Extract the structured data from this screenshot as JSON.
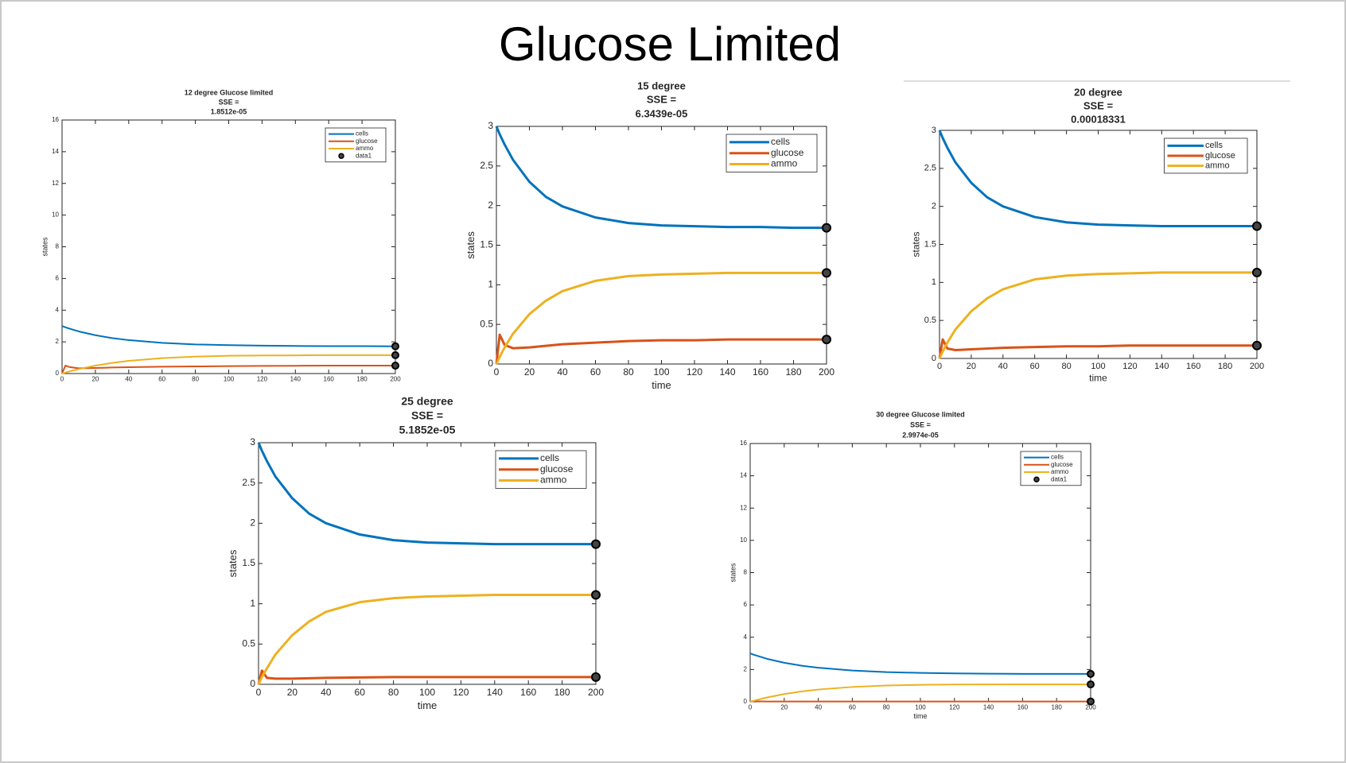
{
  "title": "Glucose Limited",
  "chart_data": [
    {
      "type": "line",
      "title": [
        "12 degree Glucose limited",
        "SSE =",
        "1.8512e-05"
      ],
      "ylabel": "states",
      "x": [
        0,
        2,
        5,
        10,
        20,
        30,
        40,
        60,
        80,
        100,
        120,
        140,
        160,
        180,
        200
      ],
      "xlim": [
        0,
        200
      ],
      "xticks": [
        0,
        20,
        40,
        60,
        80,
        100,
        120,
        140,
        160,
        180,
        200
      ],
      "ylim": [
        0,
        16
      ],
      "yticks": [
        0,
        2,
        4,
        6,
        8,
        10,
        12,
        14,
        16
      ],
      "legend": "northeast",
      "series": [
        {
          "name": "cells",
          "color": "#0072BD",
          "values": [
            3,
            2.92,
            2.82,
            2.66,
            2.42,
            2.24,
            2.11,
            1.94,
            1.84,
            1.79,
            1.76,
            1.74,
            1.73,
            1.73,
            1.72
          ]
        },
        {
          "name": "glucose",
          "color": "#D95319",
          "values": [
            0,
            0.5,
            0.4,
            0.33,
            0.35,
            0.38,
            0.4,
            0.43,
            0.45,
            0.47,
            0.48,
            0.49,
            0.5,
            0.5,
            0.5
          ]
        },
        {
          "name": "ammo",
          "color": "#EDB120",
          "values": [
            0,
            0.06,
            0.15,
            0.28,
            0.5,
            0.67,
            0.8,
            0.97,
            1.07,
            1.12,
            1.14,
            1.15,
            1.16,
            1.16,
            1.16
          ]
        },
        {
          "name": "data1",
          "color": "#000000",
          "style": "marker",
          "x": [
            200,
            200,
            200
          ],
          "values": [
            1.72,
            1.16,
            0.5
          ]
        }
      ]
    },
    {
      "type": "line",
      "title": [
        "15 degree",
        "SSE =",
        "6.3439e-05"
      ],
      "ylabel": "states",
      "xlabel": "time",
      "x": [
        0,
        2,
        5,
        10,
        20,
        30,
        40,
        60,
        80,
        100,
        120,
        140,
        160,
        180,
        200
      ],
      "xlim": [
        0,
        200
      ],
      "xticks": [
        0,
        20,
        40,
        60,
        80,
        100,
        120,
        140,
        160,
        180,
        200
      ],
      "ylim": [
        0,
        3
      ],
      "yticks": [
        0,
        0.5,
        1,
        1.5,
        2,
        2.5,
        3
      ],
      "legend": "northeast",
      "series": [
        {
          "name": "cells",
          "color": "#0072BD",
          "values": [
            3,
            2.9,
            2.77,
            2.58,
            2.3,
            2.11,
            1.99,
            1.85,
            1.78,
            1.75,
            1.74,
            1.73,
            1.73,
            1.72,
            1.72
          ]
        },
        {
          "name": "glucose",
          "color": "#D95319",
          "values": [
            0,
            0.37,
            0.24,
            0.2,
            0.21,
            0.23,
            0.25,
            0.27,
            0.29,
            0.3,
            0.3,
            0.31,
            0.31,
            0.31,
            0.31
          ]
        },
        {
          "name": "ammo",
          "color": "#EDB120",
          "values": [
            0,
            0.09,
            0.21,
            0.38,
            0.63,
            0.8,
            0.92,
            1.05,
            1.11,
            1.13,
            1.14,
            1.15,
            1.15,
            1.15,
            1.15
          ]
        },
        {
          "color": "#000000",
          "style": "marker",
          "x": [
            200,
            200,
            200
          ],
          "values": [
            1.72,
            1.15,
            0.31
          ]
        }
      ]
    },
    {
      "type": "line",
      "title": [
        "20 degree",
        "SSE =",
        "0.00018331"
      ],
      "ylabel": "states",
      "xlabel": "time",
      "x": [
        0,
        2,
        5,
        10,
        20,
        30,
        40,
        60,
        80,
        100,
        120,
        140,
        160,
        180,
        200
      ],
      "xlim": [
        0,
        200
      ],
      "xticks": [
        0,
        20,
        40,
        60,
        80,
        100,
        120,
        140,
        160,
        180,
        200
      ],
      "ylim": [
        0,
        3
      ],
      "yticks": [
        0,
        0.5,
        1,
        1.5,
        2,
        2.5,
        3
      ],
      "legend": "northeast",
      "series": [
        {
          "name": "cells",
          "color": "#0072BD",
          "values": [
            3,
            2.9,
            2.77,
            2.58,
            2.31,
            2.12,
            2.0,
            1.86,
            1.79,
            1.76,
            1.75,
            1.74,
            1.74,
            1.74,
            1.74
          ]
        },
        {
          "name": "glucose",
          "color": "#D95319",
          "values": [
            0,
            0.25,
            0.13,
            0.11,
            0.12,
            0.13,
            0.14,
            0.15,
            0.16,
            0.16,
            0.17,
            0.17,
            0.17,
            0.17,
            0.17
          ]
        },
        {
          "name": "ammo",
          "color": "#EDB120",
          "values": [
            0,
            0.09,
            0.21,
            0.38,
            0.62,
            0.79,
            0.91,
            1.04,
            1.09,
            1.11,
            1.12,
            1.13,
            1.13,
            1.13,
            1.13
          ]
        },
        {
          "color": "#000000",
          "style": "marker",
          "x": [
            200,
            200,
            200
          ],
          "values": [
            1.74,
            1.13,
            0.17
          ]
        }
      ]
    },
    {
      "type": "line",
      "title": [
        "25 degree",
        "SSE =",
        "5.1852e-05"
      ],
      "ylabel": "states",
      "xlabel": "time",
      "x": [
        0,
        2,
        5,
        10,
        20,
        30,
        40,
        60,
        80,
        100,
        120,
        140,
        160,
        180,
        200
      ],
      "xlim": [
        0,
        200
      ],
      "xticks": [
        0,
        20,
        40,
        60,
        80,
        100,
        120,
        140,
        160,
        180,
        200
      ],
      "ylim": [
        0,
        3
      ],
      "yticks": [
        0,
        0.5,
        1,
        1.5,
        2,
        2.5,
        3
      ],
      "legend": "northeast",
      "series": [
        {
          "name": "cells",
          "color": "#0072BD",
          "values": [
            3,
            2.9,
            2.77,
            2.58,
            2.31,
            2.12,
            2.0,
            1.86,
            1.79,
            1.76,
            1.75,
            1.74,
            1.74,
            1.74,
            1.74
          ]
        },
        {
          "name": "glucose",
          "color": "#D95319",
          "values": [
            0,
            0.17,
            0.08,
            0.07,
            0.07,
            0.075,
            0.08,
            0.085,
            0.09,
            0.09,
            0.09,
            0.09,
            0.09,
            0.09,
            0.09
          ]
        },
        {
          "name": "ammo",
          "color": "#EDB120",
          "values": [
            0,
            0.09,
            0.2,
            0.37,
            0.61,
            0.78,
            0.9,
            1.02,
            1.07,
            1.09,
            1.1,
            1.11,
            1.11,
            1.11,
            1.11
          ]
        },
        {
          "color": "#000000",
          "style": "marker",
          "x": [
            200,
            200,
            200
          ],
          "values": [
            1.74,
            1.11,
            0.09
          ]
        }
      ]
    },
    {
      "type": "line",
      "title": [
        "30 degree Glucose limited",
        "SSE =",
        "2.9974e-05"
      ],
      "ylabel": "states",
      "xlabel": "time",
      "x": [
        0,
        2,
        5,
        10,
        20,
        30,
        40,
        60,
        80,
        100,
        120,
        140,
        160,
        180,
        200
      ],
      "xlim": [
        0,
        200
      ],
      "xticks": [
        0,
        20,
        40,
        60,
        80,
        100,
        120,
        140,
        160,
        180,
        200
      ],
      "ylim": [
        0,
        16
      ],
      "yticks": [
        0,
        2,
        4,
        6,
        8,
        10,
        12,
        14,
        16
      ],
      "legend": "northeast",
      "series": [
        {
          "name": "cells",
          "color": "#0072BD",
          "values": [
            3,
            2.92,
            2.82,
            2.66,
            2.42,
            2.24,
            2.11,
            1.94,
            1.84,
            1.79,
            1.76,
            1.74,
            1.73,
            1.73,
            1.73
          ]
        },
        {
          "name": "glucose",
          "color": "#D95319",
          "values": [
            0,
            0.05,
            0.03,
            0.02,
            0.02,
            0.02,
            0.02,
            0.02,
            0.02,
            0.02,
            0.02,
            0.02,
            0.02,
            0.02,
            0.02
          ]
        },
        {
          "name": "ammo",
          "color": "#EDB120",
          "values": [
            0,
            0.06,
            0.14,
            0.27,
            0.48,
            0.64,
            0.76,
            0.92,
            1.01,
            1.05,
            1.07,
            1.08,
            1.08,
            1.08,
            1.08
          ]
        },
        {
          "name": "data1",
          "color": "#000000",
          "style": "marker",
          "x": [
            200,
            200,
            200
          ],
          "values": [
            1.73,
            1.08,
            0.02
          ]
        }
      ]
    }
  ]
}
